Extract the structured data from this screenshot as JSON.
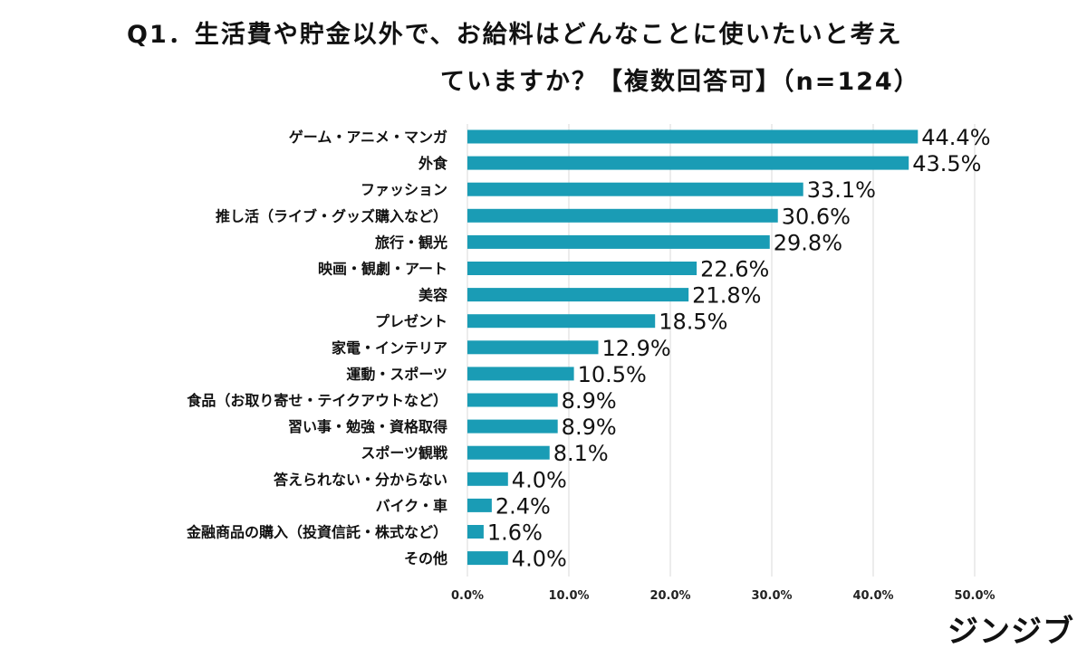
{
  "title": {
    "line1": "Q1．生活費や貯金以外で、お給料はどんなことに使いたいと考え",
    "line2": "ていますか？【複数回答可】（n=124）"
  },
  "brand": "ジンジブ",
  "colors": {
    "bar": "#1a9cb5",
    "grid": "#d9d9d9",
    "text": "#111111"
  },
  "chart_data": {
    "type": "bar",
    "orientation": "horizontal",
    "categories": [
      "ゲーム・アニメ・マンガ",
      "外食",
      "ファッション",
      "推し活（ライブ・グッズ購入など）",
      "旅行・観光",
      "映画・観劇・アート",
      "美容",
      "プレゼント",
      "家電・インテリア",
      "運動・スポーツ",
      "食品（お取り寄せ・テイクアウトなど）",
      "習い事・勉強・資格取得",
      "スポーツ観戦",
      "答えられない・分からない",
      "バイク・車",
      "金融商品の購入（投資信託・株式など）",
      "その他"
    ],
    "values": [
      44.4,
      43.5,
      33.1,
      30.6,
      29.8,
      22.6,
      21.8,
      18.5,
      12.9,
      10.5,
      8.9,
      8.9,
      8.1,
      4.0,
      2.4,
      1.6,
      4.0
    ],
    "value_labels": [
      "44.4%",
      "43.5%",
      "33.1%",
      "30.6%",
      "29.8%",
      "22.6%",
      "21.8%",
      "18.5%",
      "12.9%",
      "10.5%",
      "8.9%",
      "8.9%",
      "8.1%",
      "4.0%",
      "2.4%",
      "1.6%",
      "4.0%"
    ],
    "xticks": [
      "0.0%",
      "10.0%",
      "20.0%",
      "30.0%",
      "40.0%",
      "50.0%"
    ],
    "xlim": [
      0,
      50
    ],
    "grid": true,
    "legend": "none"
  }
}
